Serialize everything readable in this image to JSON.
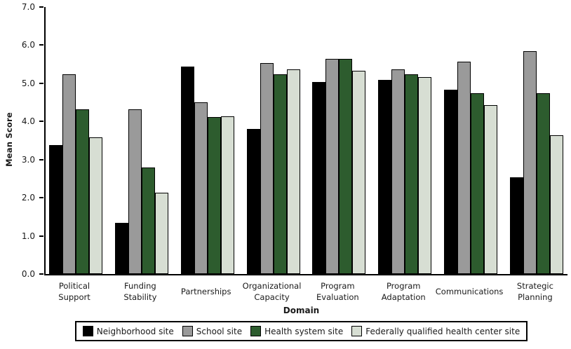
{
  "chart_data": {
    "type": "bar",
    "title": "",
    "xlabel": "Domain",
    "ylabel": "Mean Score",
    "ylim": [
      0,
      7
    ],
    "y_tick_labels": [
      "0.0",
      "1.0",
      "2.0",
      "3.0",
      "4.0",
      "5.0",
      "6.0",
      "7.0"
    ],
    "grid": false,
    "legend_position": "bottom",
    "categories": [
      "Political Support",
      "Funding Stability",
      "Partnerships",
      "Organizational Capacity",
      "Program Evaluation",
      "Program Adaptation",
      "Communications",
      "Strategic Planning"
    ],
    "category_label_lines": [
      [
        "Political",
        "Support"
      ],
      [
        "Funding",
        "Stability"
      ],
      [
        "Partnerships"
      ],
      [
        "Organizational",
        "Capacity"
      ],
      [
        "Program",
        "Evaluation"
      ],
      [
        "Program",
        "Adaptation"
      ],
      [
        "Communications"
      ],
      [
        "Strategic",
        "Planning"
      ]
    ],
    "series": [
      {
        "name": "Neighborhood site",
        "color": "#000000",
        "values": [
          3.35,
          1.3,
          5.4,
          3.77,
          5.0,
          5.05,
          4.8,
          2.5
        ]
      },
      {
        "name": "School site",
        "color": "#9a9a9a",
        "values": [
          5.2,
          4.28,
          4.47,
          5.5,
          5.6,
          5.33,
          5.53,
          5.8
        ]
      },
      {
        "name": "Health system site",
        "color": "#2d5c2e",
        "values": [
          4.28,
          2.75,
          4.07,
          5.2,
          5.6,
          5.2,
          4.7,
          4.7
        ]
      },
      {
        "name": "Federally qualified health center site",
        "color": "#d7ded3",
        "values": [
          3.55,
          2.1,
          4.1,
          5.33,
          5.3,
          5.13,
          4.4,
          3.6
        ]
      }
    ]
  }
}
